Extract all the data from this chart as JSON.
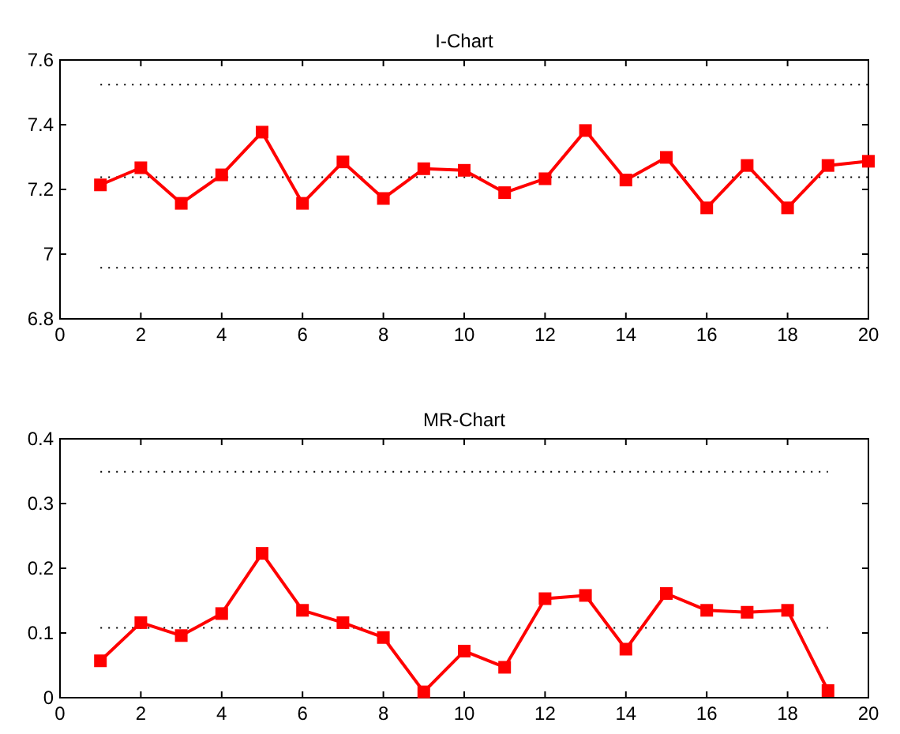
{
  "chart_data": [
    {
      "type": "line",
      "title": "I-Chart",
      "x": [
        1,
        2,
        3,
        4,
        5,
        6,
        7,
        8,
        9,
        10,
        11,
        12,
        13,
        14,
        15,
        16,
        17,
        18,
        19,
        20
      ],
      "series": [
        {
          "color": "#ff0000",
          "values": [
            7.214,
            7.267,
            7.157,
            7.245,
            7.377,
            7.157,
            7.285,
            7.172,
            7.264,
            7.259,
            7.19,
            7.233,
            7.382,
            7.229,
            7.299,
            7.143,
            7.274,
            7.143,
            7.274,
            7.287
          ]
        }
      ],
      "xlim": [
        0,
        20
      ],
      "xticks": [
        0,
        2,
        4,
        6,
        8,
        10,
        12,
        14,
        16,
        18,
        20
      ],
      "ylim": [
        6.8,
        7.6
      ],
      "yticks": [
        6.8,
        7,
        7.2,
        7.4,
        7.6
      ],
      "ref_lines": [
        {
          "axis": "y",
          "value": 7.524,
          "line_style": "dotted",
          "color": "#000000"
        },
        {
          "axis": "y",
          "value": 7.238,
          "line_style": "dotted",
          "color": "#000000"
        },
        {
          "axis": "y",
          "value": 6.958,
          "line_style": "dotted",
          "color": "#000000"
        }
      ],
      "marker": "square",
      "line_style": "solid"
    },
    {
      "type": "line",
      "title": "MR-Chart",
      "x": [
        1,
        2,
        3,
        4,
        5,
        6,
        7,
        8,
        9,
        10,
        11,
        12,
        13,
        14,
        15,
        16,
        17,
        18,
        19
      ],
      "series": [
        {
          "color": "#ff0000",
          "values": [
            0.057,
            0.116,
            0.096,
            0.13,
            0.223,
            0.135,
            0.116,
            0.093,
            0.009,
            0.072,
            0.047,
            0.153,
            0.158,
            0.075,
            0.161,
            0.135,
            0.132,
            0.135,
            0.011
          ]
        }
      ],
      "xlim": [
        0,
        20
      ],
      "xticks": [
        0,
        2,
        4,
        6,
        8,
        10,
        12,
        14,
        16,
        18,
        20
      ],
      "ylim": [
        0,
        0.4
      ],
      "yticks": [
        0,
        0.1,
        0.2,
        0.3,
        0.4
      ],
      "ref_lines": [
        {
          "axis": "y",
          "value": 0.349,
          "line_style": "dotted",
          "color": "#000000"
        },
        {
          "axis": "y",
          "value": 0.108,
          "line_style": "dotted",
          "color": "#000000"
        }
      ],
      "marker": "square",
      "line_style": "solid"
    }
  ]
}
